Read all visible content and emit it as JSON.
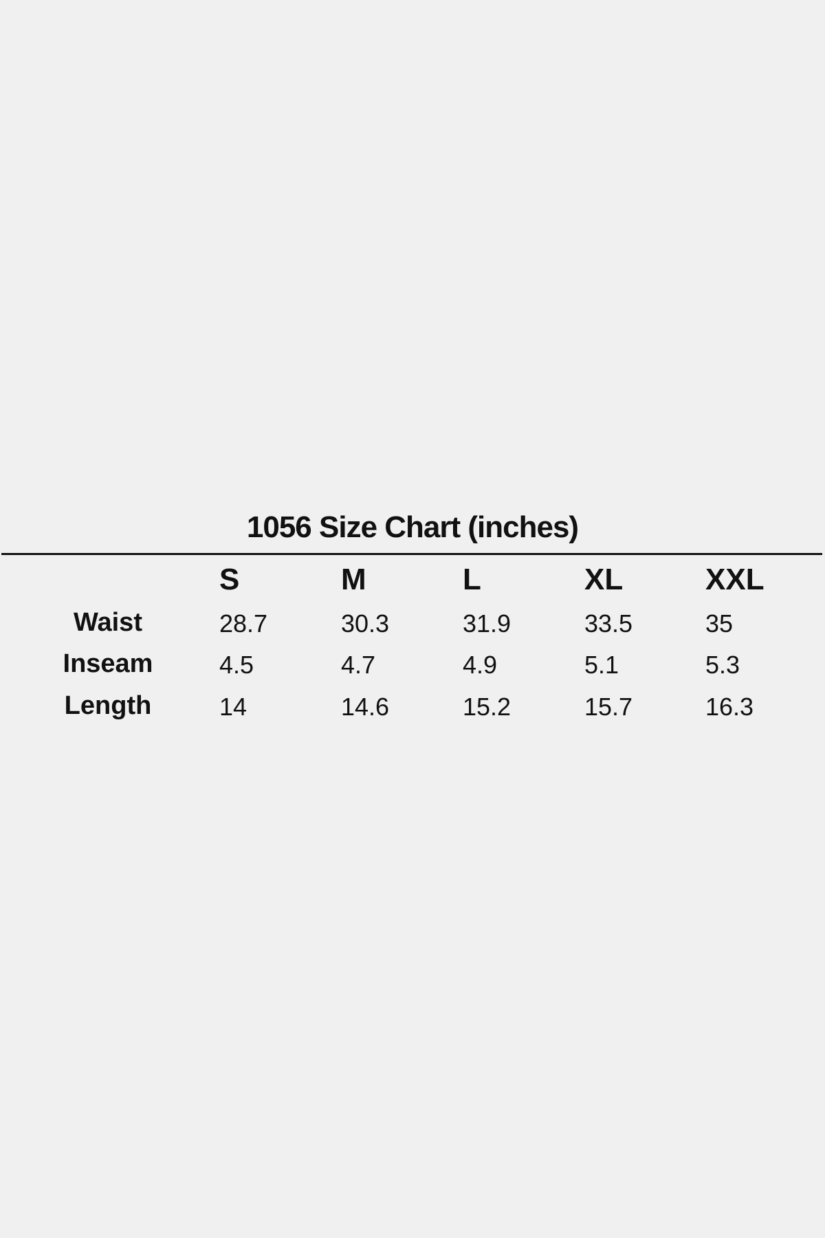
{
  "title": "1056 Size Chart (inches)",
  "sizes": [
    "S",
    "M",
    "L",
    "XL",
    "XXL"
  ],
  "rows": [
    {
      "label": "Waist",
      "values": [
        "28.7",
        "30.3",
        "31.9",
        "33.5",
        "35"
      ]
    },
    {
      "label": "Inseam",
      "values": [
        "4.5",
        "4.7",
        "4.9",
        "5.1",
        "5.3"
      ]
    },
    {
      "label": "Length",
      "values": [
        "14",
        "14.6",
        "15.2",
        "15.7",
        "16.3"
      ]
    }
  ]
}
